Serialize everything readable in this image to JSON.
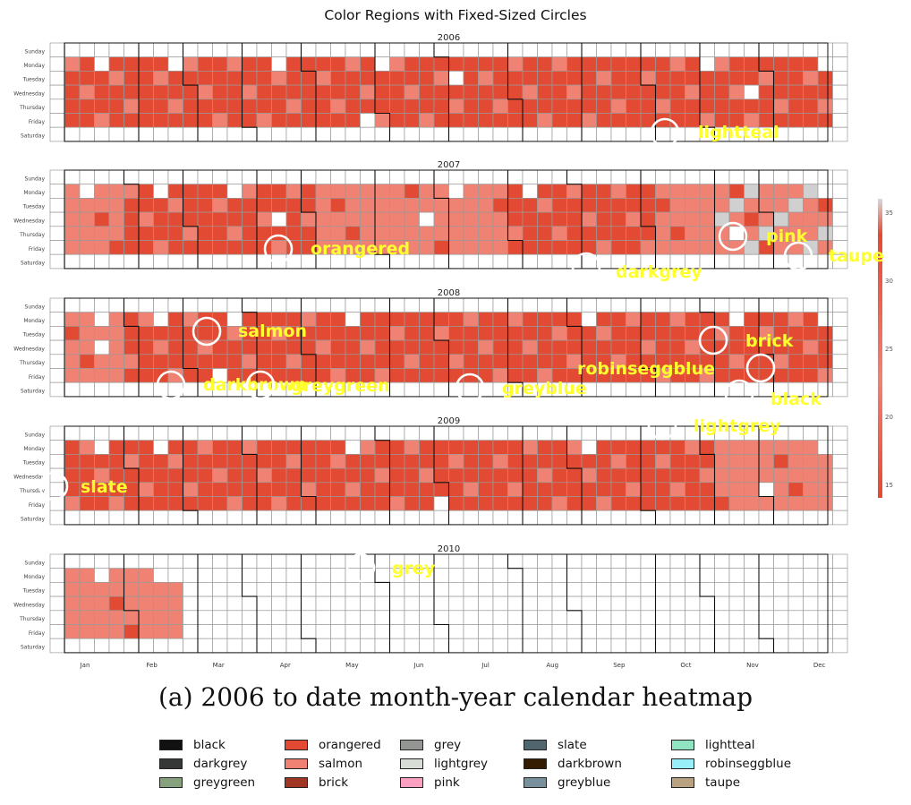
{
  "title": "Color Regions with Fixed-Sized Circles",
  "caption": "(a) 2006 to date month-year calendar heatmap",
  "chart_data": {
    "type": "heatmap",
    "years": [
      {
        "year": "2006",
        "data_end_col": 53
      },
      {
        "year": "2007",
        "data_end_col": 53
      },
      {
        "year": "2008",
        "data_end_col": 53
      },
      {
        "year": "2009",
        "data_end_col": 53
      },
      {
        "year": "2010",
        "data_end_col": 9
      }
    ],
    "day_labels": [
      "Sunday",
      "Monday",
      "Tuesday",
      "Wednesday",
      "Thursday",
      "Friday",
      "Saturday"
    ],
    "month_labels": [
      "Jan",
      "Feb",
      "Mar",
      "Apr",
      "May",
      "Jun",
      "Jul",
      "Aug",
      "Sep",
      "Oct",
      "Nov",
      "Dec"
    ],
    "colorbar": {
      "ticks": [
        "35",
        "30",
        "25",
        "20",
        "15"
      ],
      "range": [
        14,
        36
      ]
    },
    "cell_colors": {
      "high": "#e24a33",
      "low": "#f08273",
      "mid": "#d0d0d0"
    },
    "circle_labels": [
      {
        "label": "lightteal"
      },
      {
        "label": "orangered"
      },
      {
        "label": "pink"
      },
      {
        "label": "taupe"
      },
      {
        "label": "darkgrey"
      },
      {
        "label": "salmon"
      },
      {
        "label": "brick"
      },
      {
        "label": "robinseggblue"
      },
      {
        "label": "darkbrown"
      },
      {
        "label": "greygreen"
      },
      {
        "label": "greyblue"
      },
      {
        "label": "black"
      },
      {
        "label": "lightgrey"
      },
      {
        "label": "slate"
      },
      {
        "label": "grey"
      }
    ]
  },
  "legend": [
    {
      "label": "black",
      "color": "#111111"
    },
    {
      "label": "darkgrey",
      "color": "#363737"
    },
    {
      "label": "greygreen",
      "color": "#86a17d"
    },
    {
      "label": "orangered",
      "color": "#e24a33"
    },
    {
      "label": "salmon",
      "color": "#f08273"
    },
    {
      "label": "brick",
      "color": "#a03623"
    },
    {
      "label": "grey",
      "color": "#929591"
    },
    {
      "label": "lightgrey",
      "color": "#d8dcd6"
    },
    {
      "label": "pink",
      "color": "#ff9fc1"
    },
    {
      "label": "slate",
      "color": "#51656e"
    },
    {
      "label": "darkbrown",
      "color": "#341c02"
    },
    {
      "label": "greyblue",
      "color": "#77909b"
    },
    {
      "label": "lightteal",
      "color": "#90e4c1"
    },
    {
      "label": "robinseggblue",
      "color": "#98eff9"
    },
    {
      "label": "taupe",
      "color": "#b9a281"
    }
  ]
}
